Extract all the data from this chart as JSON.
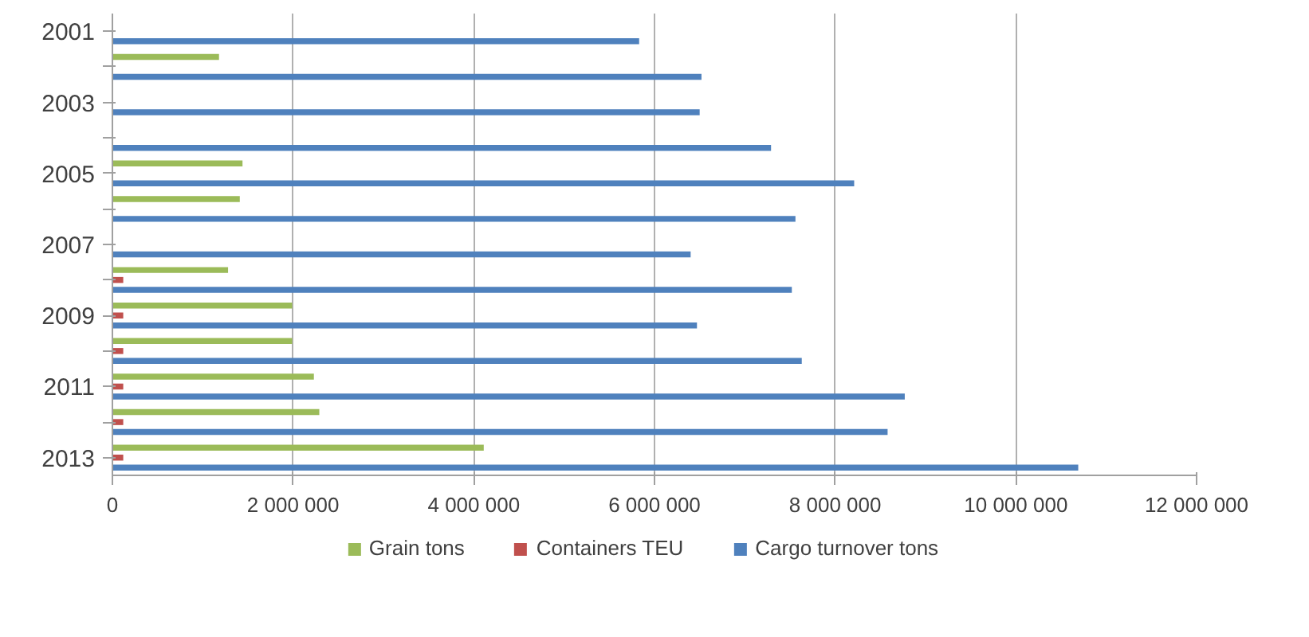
{
  "chart_data": {
    "type": "bar",
    "orientation": "horizontal",
    "categories": [
      "2001",
      null,
      "2003",
      null,
      "2005",
      null,
      "2007",
      null,
      "2009",
      null,
      "2011",
      null,
      "2013"
    ],
    "series": [
      {
        "name": "Grain tons",
        "color": "#9bbb59",
        "values": [
          null,
          1180000,
          null,
          null,
          1440000,
          1410000,
          null,
          1280000,
          1990000,
          1990000,
          2230000,
          2290000,
          4110000
        ]
      },
      {
        "name": "Containers TEU",
        "color": "#c0504d",
        "values": [
          null,
          null,
          null,
          null,
          null,
          null,
          null,
          120000,
          120000,
          120000,
          120000,
          120000,
          120000
        ]
      },
      {
        "name": "Cargo turnover tons",
        "color": "#4f81bd",
        "values": [
          5830000,
          6520000,
          6500000,
          7290000,
          8210000,
          7560000,
          6400000,
          7520000,
          6470000,
          7630000,
          8770000,
          8580000,
          10690000
        ]
      }
    ],
    "xlim": [
      0,
      12000000
    ],
    "xticks": [
      0,
      {
        "value": 2000000,
        "label": "2 000 000"
      },
      {
        "value": 4000000,
        "label": "4 000 000"
      },
      {
        "value": 6000000,
        "label": "6 000 000"
      },
      {
        "value": 8000000,
        "label": "8 000 000"
      },
      {
        "value": 10000000,
        "label": "10 000 000"
      },
      {
        "value": 12000000,
        "label": "12 000 000"
      }
    ],
    "grid": "x",
    "legend": "bottom"
  }
}
